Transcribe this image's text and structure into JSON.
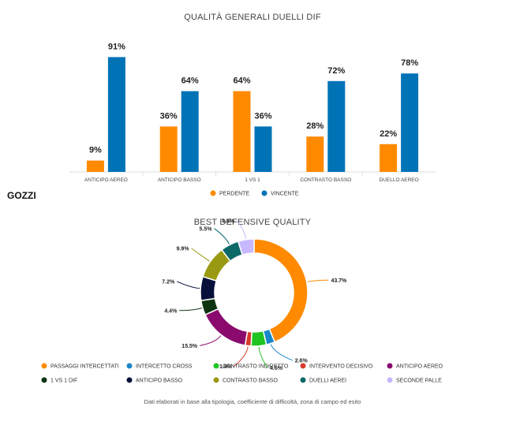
{
  "player_name": "GOZZI",
  "footnote": "Dati elaborati in base alla tipologia, coefficiente di difficoltà, zona di campo ed esito",
  "chart_data": [
    {
      "type": "bar",
      "title": "QUALITÀ GENERALI DUELLI DIF",
      "categories": [
        "ANTICIPO AEREO",
        "ANTICIPO BASSO",
        "1 VS 1",
        "CONTRASTO BASSO",
        "DUELLO AEREO"
      ],
      "series": [
        {
          "name": "PERDENTE",
          "color": "#ff8a00",
          "values": [
            9,
            36,
            64,
            28,
            22
          ]
        },
        {
          "name": "VINCENTE",
          "color": "#0073b7",
          "values": [
            91,
            64,
            36,
            72,
            78
          ]
        }
      ],
      "value_suffix": "%",
      "ylim": [
        0,
        100
      ],
      "legend": "bottom"
    },
    {
      "type": "pie",
      "subtype": "donut",
      "title": "BEST DEFENSIVE QUALITY",
      "slices": [
        {
          "label": "PASSAGGI INTERCETTATI",
          "value": 43.7,
          "color": "#ff8a00"
        },
        {
          "label": "INTERCETTO CROSS",
          "value": 2.6,
          "color": "#1a86c8"
        },
        {
          "label": "CONTRASTO INDIRETTO",
          "value": 4.6,
          "color": "#1fc421"
        },
        {
          "label": "INTERVENTO DECISIVO",
          "value": 1.8,
          "color": "#d83c2a"
        },
        {
          "label": "ANTICIPO AEREO",
          "value": 15.5,
          "color": "#8a0a6e"
        },
        {
          "label": "1 VS 1 DIF",
          "value": 4.4,
          "color": "#0c3410"
        },
        {
          "label": "ANTICIPO BASSO",
          "value": 7.2,
          "color": "#06103a"
        },
        {
          "label": "CONTRASTO BASSO",
          "value": 9.9,
          "color": "#9a9a12"
        },
        {
          "label": "DUELLI AEREI",
          "value": 5.5,
          "color": "#0d6868"
        },
        {
          "label": "SECONDE PALLE",
          "value": 4.8,
          "color": "#c8b8ff"
        }
      ],
      "value_suffix": "%",
      "legend": "bottom"
    }
  ]
}
